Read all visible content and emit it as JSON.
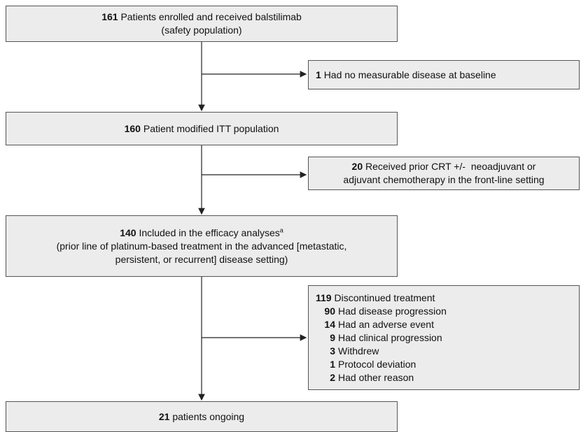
{
  "main": [
    {
      "count": 161,
      "text": "Patients enrolled and received balstilimab",
      "note": "(safety population)"
    },
    {
      "count": 160,
      "text": "Patient modified ITT population"
    },
    {
      "count": 140,
      "text": "Included in the efficacy analyses",
      "footnote": "a",
      "note": [
        "(prior line of platinum-based treatment in the advanced [metastatic,",
        "persistent, or recurrent] disease setting)"
      ]
    },
    {
      "count": 21,
      "text": "patients ongoing"
    }
  ],
  "exclusions": [
    {
      "count": 1,
      "text": "Had no measurable disease at baseline"
    },
    {
      "count": 20,
      "text": "Received prior CRT +/-  neoadjuvant or",
      "text2": "adjuvant chemotherapy in the front-line setting"
    },
    {
      "count": 119,
      "text": "Discontinued treatment",
      "reasons": [
        {
          "count": 90,
          "text": "Had disease progression"
        },
        {
          "count": 14,
          "text": "Had an adverse event"
        },
        {
          "count": 9,
          "text": "Had clinical progression"
        },
        {
          "count": 3,
          "text": "Withdrew"
        },
        {
          "count": 1,
          "text": "Protocol deviation"
        },
        {
          "count": 2,
          "text": "Had other reason"
        }
      ]
    }
  ]
}
